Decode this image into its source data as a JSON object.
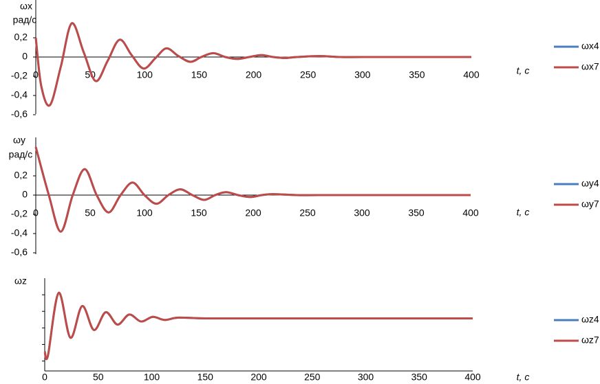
{
  "chart_data": [
    {
      "type": "line",
      "y_label": "ωx",
      "y_unit": "рад/с",
      "x_label": "t, с",
      "xlim": [
        0,
        400
      ],
      "xticks": [
        0,
        50,
        100,
        150,
        200,
        250,
        300,
        350,
        400
      ],
      "ylim": [
        -0.6,
        0.6
      ],
      "yticks": [
        {
          "value": 0.2,
          "label": "0,2"
        },
        0,
        {
          "value": -0.2,
          "label": "-0,2"
        },
        {
          "value": -0.4,
          "label": "-0,4"
        },
        {
          "value": -0.6,
          "label": "-0,6"
        }
      ],
      "grid": false,
      "legend": "right",
      "x": [
        0,
        5,
        13,
        23,
        33,
        44,
        55,
        66,
        77,
        88,
        99,
        110,
        120,
        131,
        142,
        152,
        163,
        174,
        185,
        196,
        207,
        218,
        229,
        240,
        260,
        280,
        300,
        350,
        400
      ],
      "series": [
        {
          "name": "ωx4",
          "color": "#4a7ebb",
          "values": [
            0.2,
            -0.3,
            -0.5,
            -0.1,
            0.35,
            0.05,
            -0.25,
            -0.04,
            0.18,
            0.02,
            -0.12,
            -0.01,
            0.09,
            0.01,
            -0.05,
            0,
            0.04,
            0,
            -0.02,
            0,
            0.02,
            0,
            -0.01,
            0,
            0.01,
            0,
            0,
            0,
            0
          ]
        },
        {
          "name": "ωx7",
          "color": "#be4b48",
          "values": [
            0.2,
            -0.3,
            -0.5,
            -0.1,
            0.35,
            0.05,
            -0.25,
            -0.04,
            0.18,
            0.02,
            -0.12,
            -0.01,
            0.09,
            0.01,
            -0.05,
            0,
            0.04,
            0,
            -0.02,
            0,
            0.02,
            0,
            -0.01,
            0,
            0.01,
            0,
            0,
            0,
            0
          ]
        }
      ]
    },
    {
      "type": "line",
      "y_label": "ωy",
      "y_unit": "рад/с",
      "x_label": "t, с",
      "xlim": [
        0,
        400
      ],
      "xticks": [
        0,
        50,
        100,
        150,
        200,
        250,
        300,
        350,
        400
      ],
      "ylim": [
        -0.6,
        0.6
      ],
      "yticks": [
        {
          "value": 0.2,
          "label": "0,2"
        },
        0,
        {
          "value": -0.2,
          "label": "-0,2"
        },
        {
          "value": -0.4,
          "label": "-0,4"
        },
        {
          "value": -0.6,
          "label": "-0,6"
        }
      ],
      "grid": false,
      "legend": "right",
      "x": [
        0,
        12,
        23,
        34,
        45,
        56,
        67,
        78,
        89,
        100,
        111,
        122,
        133,
        144,
        155,
        165,
        175,
        186,
        197,
        208,
        218,
        240,
        260,
        300,
        350,
        400
      ],
      "series": [
        {
          "name": "ωy4",
          "color": "#4a7ebb",
          "values": [
            0.5,
            0,
            -0.38,
            0,
            0.27,
            0,
            -0.18,
            0,
            0.13,
            0,
            -0.09,
            0,
            0.06,
            0,
            -0.05,
            0,
            0.03,
            0,
            -0.02,
            0,
            0.01,
            0,
            0,
            0,
            0,
            0
          ]
        },
        {
          "name": "ωy7",
          "color": "#be4b48",
          "values": [
            0.5,
            0,
            -0.38,
            0,
            0.27,
            0,
            -0.18,
            0,
            0.13,
            0,
            -0.09,
            0,
            0.06,
            0,
            -0.05,
            0,
            0.03,
            0,
            -0.02,
            0,
            0.01,
            0,
            0,
            0,
            0,
            0
          ]
        }
      ]
    },
    {
      "type": "line",
      "y_label": "ωz",
      "x_label": "t, с",
      "xlim": [
        0,
        400
      ],
      "xticks": [
        0,
        50,
        100,
        150,
        200,
        250,
        300,
        350,
        400
      ],
      "ylim": [
        -0.6,
        0.6
      ],
      "grid": false,
      "legend": "right",
      "x": [
        0,
        3,
        13,
        24,
        35,
        46,
        57,
        68,
        79,
        90,
        101,
        112,
        125,
        150,
        200,
        300,
        400
      ],
      "series": [
        {
          "name": "ωz4",
          "color": "#4a7ebb",
          "values": [
            -0.35,
            -0.4,
            0.41,
            -0.17,
            0.24,
            -0.07,
            0.16,
            0,
            0.13,
            0.04,
            0.1,
            0.06,
            0.09,
            0.08,
            0.08,
            0.08,
            0.08
          ]
        },
        {
          "name": "ωz7",
          "color": "#be4b48",
          "values": [
            -0.35,
            -0.4,
            0.41,
            -0.17,
            0.24,
            -0.07,
            0.16,
            0,
            0.13,
            0.04,
            0.1,
            0.06,
            0.09,
            0.08,
            0.08,
            0.08,
            0.08
          ]
        }
      ]
    }
  ]
}
